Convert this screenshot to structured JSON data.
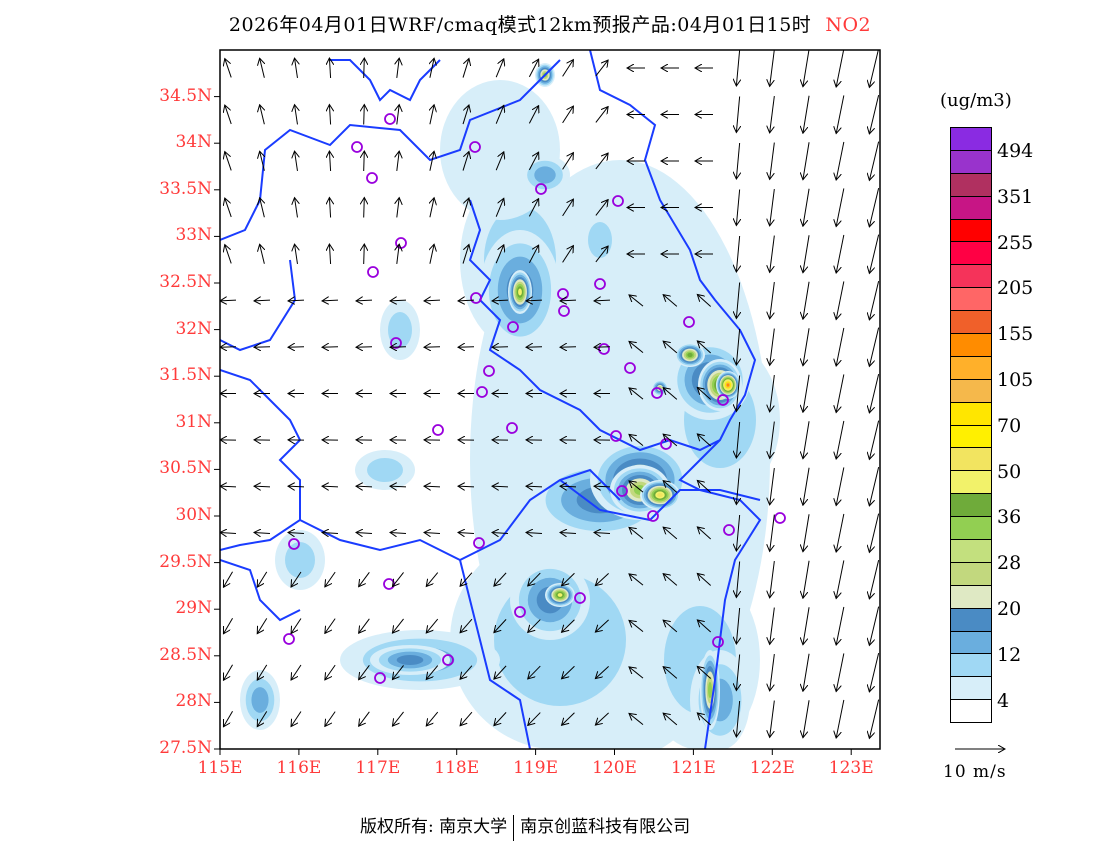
{
  "title": {
    "main": "2026年04月01日WRF/cmaq模式12km预报产品:04月01日15时",
    "species": "NO2"
  },
  "map": {
    "lon_range": [
      115,
      123.5
    ],
    "lat_range": [
      27.5,
      35.0
    ],
    "lat_labels": [
      "34.5N",
      "34N",
      "33.5N",
      "33N",
      "32.5N",
      "32N",
      "31.5N",
      "31N",
      "30.5N",
      "30N",
      "29.5N",
      "29N",
      "28.5N",
      "28N",
      "27.5N"
    ],
    "lat_values": [
      34.5,
      34,
      33.5,
      33,
      32.5,
      32,
      31.5,
      31,
      30.5,
      30,
      29.5,
      29,
      28.5,
      28,
      27.5
    ],
    "lon_labels": [
      "115E",
      "116E",
      "117E",
      "118E",
      "119E",
      "120E",
      "121E",
      "122E",
      "123E"
    ],
    "lon_values": [
      115,
      116,
      117,
      118,
      119,
      120,
      121,
      122,
      123
    ],
    "label_color": "#ff3a3a",
    "boundary_color": "#1a3cff",
    "station_color": "#9900dd"
  },
  "legend": {
    "unit": "(ug/m3)",
    "colors": [
      "#8a2be2",
      "#9933cc",
      "#b03060",
      "#c71585",
      "#ff0000",
      "#ff0044",
      "#f5335a",
      "#ff6666",
      "#f0602a",
      "#ff8c00",
      "#ffb02a",
      "#f5b84b",
      "#ffe600",
      "#fff000",
      "#f2e460",
      "#f2f26a",
      "#6fab3a",
      "#92cf52",
      "#c3e07e",
      "#c2d87e",
      "#dfe9c4",
      "#4a8bc4",
      "#6aaede",
      "#a0d8f4",
      "#d7eef9",
      "#ffffff"
    ],
    "labels": [
      "494",
      "351",
      "255",
      "205",
      "155",
      "105",
      "70",
      "50",
      "36",
      "28",
      "20",
      "12",
      "4"
    ],
    "wind_ref": "10 m/s"
  },
  "footer": {
    "copyright": "版权所有: 南京大学",
    "company": "南京创蓝科技有限公司"
  }
}
